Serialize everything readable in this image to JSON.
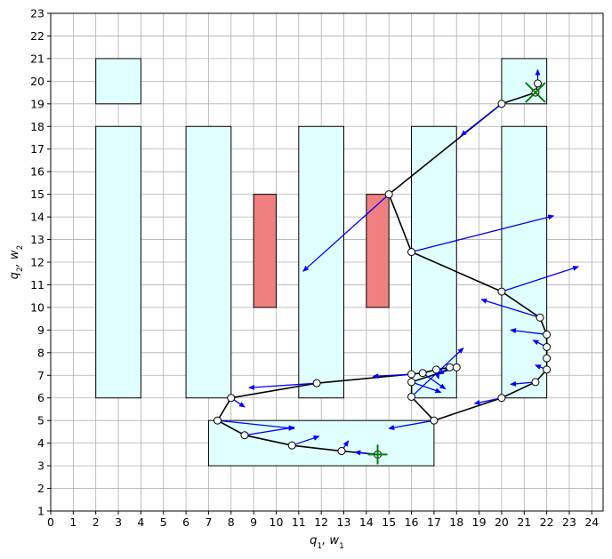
{
  "chart_data": {
    "type": "line",
    "xlabel": "q_1, w_1",
    "ylabel": "q_2, w_2",
    "xlim": [
      0,
      24.5
    ],
    "ylim": [
      1,
      23
    ],
    "xticks": [
      0,
      1,
      2,
      3,
      4,
      5,
      6,
      7,
      8,
      9,
      10,
      11,
      12,
      13,
      14,
      15,
      16,
      17,
      18,
      19,
      20,
      21,
      22,
      23,
      24
    ],
    "yticks": [
      1,
      2,
      3,
      4,
      5,
      6,
      7,
      8,
      9,
      10,
      11,
      12,
      13,
      14,
      15,
      16,
      17,
      18,
      19,
      20,
      21,
      22,
      23
    ],
    "grid": true,
    "colors": {
      "free_region": "#e0ffff",
      "obstacle": "#f08080",
      "path": "#000000",
      "velocity": "#0000ff",
      "endpoint_marker": "#008000"
    },
    "free_regions": [
      {
        "x": [
          2,
          4
        ],
        "y": [
          19,
          21
        ]
      },
      {
        "x": [
          2,
          4
        ],
        "y": [
          6,
          18
        ]
      },
      {
        "x": [
          6,
          8
        ],
        "y": [
          6,
          18
        ]
      },
      {
        "x": [
          11,
          13
        ],
        "y": [
          6,
          18
        ]
      },
      {
        "x": [
          16,
          18
        ],
        "y": [
          6,
          18
        ]
      },
      {
        "x": [
          20,
          22
        ],
        "y": [
          6,
          18
        ]
      },
      {
        "x": [
          20,
          22
        ],
        "y": [
          19,
          21
        ]
      },
      {
        "x": [
          7,
          17
        ],
        "y": [
          3,
          5
        ]
      }
    ],
    "obstacles": [
      {
        "x": [
          9,
          10
        ],
        "y": [
          10,
          15
        ]
      },
      {
        "x": [
          14,
          15
        ],
        "y": [
          10,
          15
        ]
      }
    ],
    "path_points": [
      {
        "x": 14.5,
        "y": 3.5
      },
      {
        "x": 12.9,
        "y": 3.65
      },
      {
        "x": 10.7,
        "y": 3.9
      },
      {
        "x": 8.6,
        "y": 4.35
      },
      {
        "x": 7.4,
        "y": 5.0
      },
      {
        "x": 8.0,
        "y": 6.0
      },
      {
        "x": 11.8,
        "y": 6.65
      },
      {
        "x": 16.0,
        "y": 7.05
      },
      {
        "x": 16.5,
        "y": 7.1
      },
      {
        "x": 17.1,
        "y": 7.25
      },
      {
        "x": 17.7,
        "y": 7.35
      },
      {
        "x": 18.0,
        "y": 7.35
      },
      {
        "x": 16.0,
        "y": 6.7
      },
      {
        "x": 16.0,
        "y": 6.05
      },
      {
        "x": 17.0,
        "y": 5.0
      },
      {
        "x": 20.0,
        "y": 6.0
      },
      {
        "x": 21.5,
        "y": 6.7
      },
      {
        "x": 22.0,
        "y": 7.25
      },
      {
        "x": 22.0,
        "y": 7.75
      },
      {
        "x": 22.0,
        "y": 8.25
      },
      {
        "x": 22.0,
        "y": 8.8
      },
      {
        "x": 21.7,
        "y": 9.55
      },
      {
        "x": 20.0,
        "y": 10.7
      },
      {
        "x": 16.0,
        "y": 12.45
      },
      {
        "x": 15.0,
        "y": 15.0
      },
      {
        "x": 20.0,
        "y": 19.0
      },
      {
        "x": 21.5,
        "y": 19.5
      },
      {
        "x": 21.6,
        "y": 19.9
      }
    ],
    "velocity_arrows": [
      {
        "x": 14.5,
        "y": 3.5,
        "dx": -1.0,
        "dy": 0.1
      },
      {
        "x": 12.9,
        "y": 3.65,
        "dx": 0.3,
        "dy": 0.45
      },
      {
        "x": 10.7,
        "y": 3.9,
        "dx": 1.2,
        "dy": 0.4
      },
      {
        "x": 8.6,
        "y": 4.35,
        "dx": 2.2,
        "dy": 0.35
      },
      {
        "x": 7.4,
        "y": 5.0,
        "dx": 3.4,
        "dy": -0.35
      },
      {
        "x": 8.0,
        "y": 6.0,
        "dx": 0.6,
        "dy": -0.4
      },
      {
        "x": 11.8,
        "y": 6.65,
        "dx": -3.0,
        "dy": -0.2
      },
      {
        "x": 16.0,
        "y": 7.05,
        "dx": -1.7,
        "dy": -0.1
      },
      {
        "x": 16.5,
        "y": 7.1,
        "dx": 1.0,
        "dy": -0.7
      },
      {
        "x": 17.1,
        "y": 7.25,
        "dx": 0.1,
        "dy": -0.4
      },
      {
        "x": 17.7,
        "y": 7.35,
        "dx": -0.5,
        "dy": -0.3
      },
      {
        "x": 16.0,
        "y": 6.7,
        "dx": 1.3,
        "dy": -0.45
      },
      {
        "x": 16.0,
        "y": 6.05,
        "dx": 2.3,
        "dy": 2.15
      },
      {
        "x": 17.0,
        "y": 5.0,
        "dx": -2.0,
        "dy": -0.35
      },
      {
        "x": 20.0,
        "y": 6.0,
        "dx": -1.2,
        "dy": -0.25
      },
      {
        "x": 21.5,
        "y": 6.7,
        "dx": -1.1,
        "dy": -0.1
      },
      {
        "x": 22.0,
        "y": 7.25,
        "dx": -0.5,
        "dy": 0.2
      },
      {
        "x": 22.0,
        "y": 8.8,
        "dx": -1.6,
        "dy": 0.2
      },
      {
        "x": 21.7,
        "y": 9.55,
        "dx": -2.6,
        "dy": 0.8
      },
      {
        "x": 22.0,
        "y": 8.25,
        "dx": -0.6,
        "dy": 0.3
      },
      {
        "x": 20.0,
        "y": 10.7,
        "dx": 3.4,
        "dy": 1.1
      },
      {
        "x": 16.0,
        "y": 12.45,
        "dx": 6.3,
        "dy": 1.6
      },
      {
        "x": 15.0,
        "y": 15.0,
        "dx": -3.8,
        "dy": -3.4
      },
      {
        "x": 20.0,
        "y": 19.0,
        "dx": -1.8,
        "dy": -1.4
      },
      {
        "x": 21.6,
        "y": 19.9,
        "dx": 0.0,
        "dy": 0.6
      }
    ],
    "start_marker": {
      "x": 14.5,
      "y": 3.5,
      "shape": "plus"
    },
    "goal_marker": {
      "x": 21.5,
      "y": 19.5,
      "shape": "x"
    }
  }
}
